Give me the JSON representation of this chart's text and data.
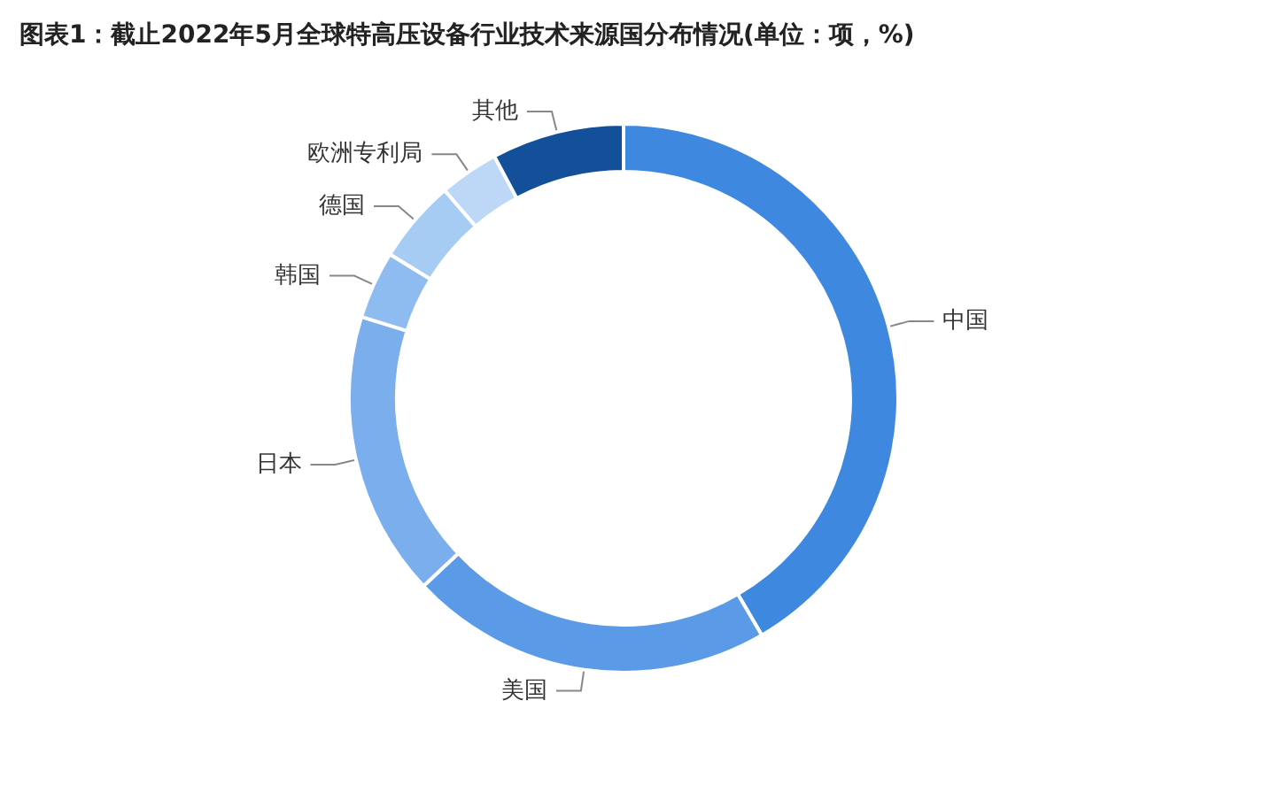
{
  "chart_data": {
    "type": "donut",
    "title": "图表1：截止2022年5月全球特高压设备行业技术来源国分布情况(单位：项，%)",
    "categories": [
      "中国",
      "美国",
      "日本",
      "韩国",
      "德国",
      "欧洲专利局",
      "其他"
    ],
    "values": [
      41.6,
      21.4,
      16.8,
      4,
      4.9,
      3.5,
      7.8
    ],
    "colors": [
      "#3f88e0",
      "#5a9ae6",
      "#7aaeec",
      "#8fbcf0",
      "#a6ccf4",
      "#bcd8f6",
      "#14509a"
    ],
    "legend": false
  }
}
